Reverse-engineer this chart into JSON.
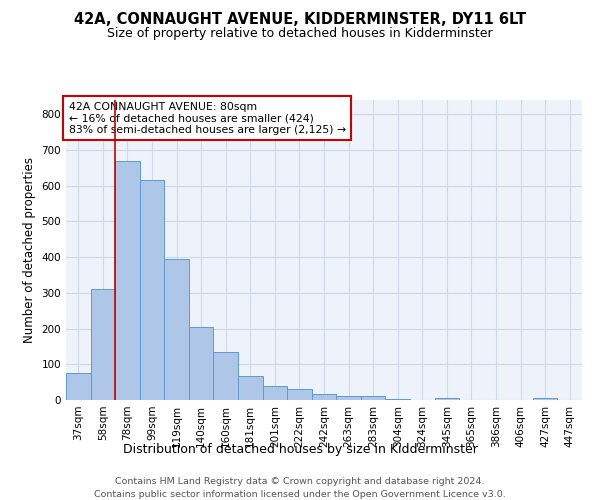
{
  "title": "42A, CONNAUGHT AVENUE, KIDDERMINSTER, DY11 6LT",
  "subtitle": "Size of property relative to detached houses in Kidderminster",
  "xlabel": "Distribution of detached houses by size in Kidderminster",
  "ylabel": "Number of detached properties",
  "categories": [
    "37sqm",
    "58sqm",
    "78sqm",
    "99sqm",
    "119sqm",
    "140sqm",
    "160sqm",
    "181sqm",
    "201sqm",
    "222sqm",
    "242sqm",
    "263sqm",
    "283sqm",
    "304sqm",
    "324sqm",
    "345sqm",
    "365sqm",
    "386sqm",
    "406sqm",
    "427sqm",
    "447sqm"
  ],
  "values": [
    75,
    312,
    668,
    615,
    395,
    205,
    135,
    68,
    38,
    32,
    18,
    12,
    10,
    4,
    0,
    5,
    0,
    0,
    0,
    5,
    0
  ],
  "bar_color": "#aec6e8",
  "bar_edge_color": "#5b9bd5",
  "vline_x_index": 2,
  "vline_color": "#cc0000",
  "annotation_text": "42A CONNAUGHT AVENUE: 80sqm\n← 16% of detached houses are smaller (424)\n83% of semi-detached houses are larger (2,125) →",
  "annotation_box_color": "#ffffff",
  "annotation_box_edge": "#cc0000",
  "ylim": [
    0,
    840
  ],
  "yticks": [
    0,
    100,
    200,
    300,
    400,
    500,
    600,
    700,
    800
  ],
  "grid_color": "#d0d8e8",
  "bg_color": "#eef2fa",
  "footer_line1": "Contains HM Land Registry data © Crown copyright and database right 2024.",
  "footer_line2": "Contains public sector information licensed under the Open Government Licence v3.0.",
  "title_fontsize": 10.5,
  "subtitle_fontsize": 9,
  "xlabel_fontsize": 9,
  "ylabel_fontsize": 8.5,
  "tick_fontsize": 7.5,
  "footer_fontsize": 6.8,
  "annot_fontsize": 7.8
}
